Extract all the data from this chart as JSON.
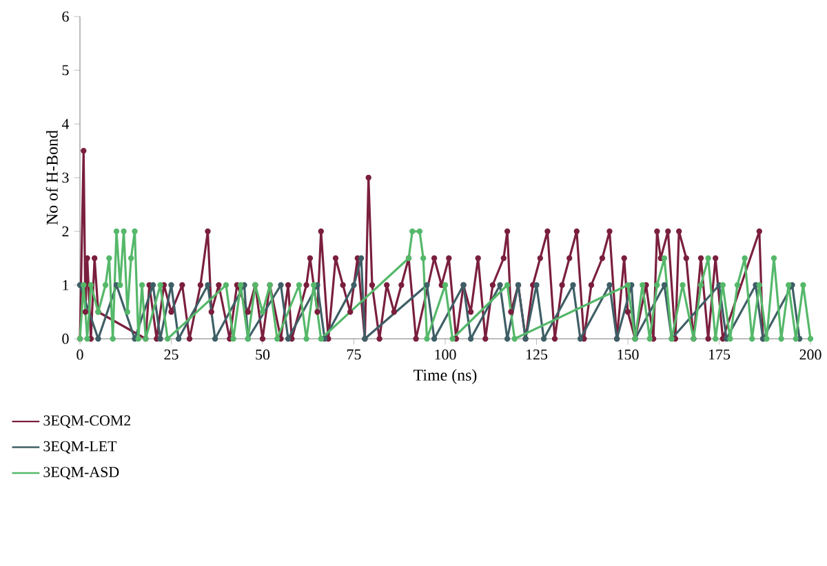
{
  "chart_data": {
    "type": "line",
    "xlabel": "Time (ns)",
    "ylabel": "No of H-Bond",
    "xlim": [
      0,
      200
    ],
    "ylim": [
      0,
      6
    ],
    "xticks": [
      0,
      25,
      50,
      75,
      100,
      125,
      150,
      175,
      200
    ],
    "yticks": [
      0,
      1,
      2,
      3,
      4,
      5,
      6
    ],
    "legend": "bottom left",
    "marker": "circle",
    "series": [
      {
        "name": "3EQM-COM2",
        "color": "#7a1f3d",
        "x": [
          0,
          1,
          1.5,
          2,
          3,
          4,
          5,
          18,
          19,
          21,
          23,
          25,
          28,
          30,
          33,
          35,
          36,
          38,
          41,
          43,
          46,
          48,
          50,
          52,
          55,
          57,
          58,
          62,
          63,
          65,
          66,
          68,
          70,
          72,
          74,
          76,
          78,
          79,
          80,
          82,
          84,
          86,
          88,
          90,
          92,
          97,
          99,
          101,
          103,
          105,
          107,
          109,
          111,
          113,
          116,
          117,
          118,
          120,
          122,
          124,
          126,
          128,
          130,
          132,
          134,
          136,
          138,
          140,
          143,
          145,
          147,
          149,
          150,
          152,
          155,
          157,
          158,
          159,
          161,
          163,
          164,
          166,
          168,
          170,
          172,
          174,
          176,
          186,
          187
        ],
        "values": [
          0,
          3.5,
          0.5,
          1.5,
          0,
          1.5,
          0.5,
          0,
          1,
          0,
          1,
          0.5,
          1,
          0,
          1,
          2,
          0.5,
          1,
          0,
          1,
          0.5,
          1,
          0,
          1,
          0,
          1,
          0,
          1,
          1.5,
          0.5,
          2,
          0,
          1.5,
          1,
          0.5,
          1.5,
          0,
          3,
          1,
          0,
          1,
          0.5,
          1,
          1.5,
          0,
          1.5,
          1,
          1.5,
          0,
          1,
          0.5,
          1.5,
          0,
          1,
          1.5,
          2,
          0.5,
          1,
          0,
          1,
          1.5,
          2,
          0,
          1,
          1.5,
          2,
          0,
          1,
          1.5,
          2,
          0,
          1.5,
          0.5,
          0,
          1,
          0,
          2,
          1.5,
          2,
          0,
          2,
          1.5,
          0,
          1.5,
          0,
          1.5,
          0,
          2,
          0
        ]
      },
      {
        "name": "3EQM-LET",
        "color": "#3e5f66",
        "x": [
          0,
          5,
          10,
          15,
          20,
          22,
          25,
          27,
          35,
          37,
          45,
          46,
          55,
          57,
          65,
          67,
          75,
          77,
          78,
          95,
          97,
          105,
          107,
          115,
          117,
          120,
          122,
          125,
          127,
          135,
          137,
          145,
          147,
          151,
          152,
          160,
          162,
          175,
          177,
          185,
          187,
          195,
          197
        ],
        "values": [
          1,
          0,
          1,
          0,
          1,
          0,
          1,
          0,
          1,
          0,
          1,
          0,
          1,
          0,
          1,
          0,
          1,
          1.5,
          0,
          1,
          0,
          1,
          0,
          1,
          0,
          1,
          0,
          1,
          0,
          1,
          0,
          1,
          0,
          1,
          0,
          1,
          0,
          1,
          0,
          1,
          0,
          1,
          0
        ]
      },
      {
        "name": "3EQM-ASD",
        "color": "#55b86a",
        "x": [
          0,
          1,
          2,
          3,
          5,
          7,
          8,
          9,
          10,
          11,
          12,
          13,
          14,
          15,
          16,
          17,
          18,
          22,
          24,
          40,
          42,
          44,
          46,
          48,
          50,
          52,
          54,
          60,
          62,
          64,
          66,
          90,
          91,
          93,
          94,
          95,
          100,
          102,
          117,
          119,
          150,
          152,
          154,
          156,
          158,
          160,
          162,
          165,
          168,
          170,
          172,
          174,
          176,
          178,
          180,
          182,
          184,
          186,
          188,
          190,
          192,
          194,
          196,
          198,
          200
        ],
        "values": [
          0,
          1,
          0,
          1,
          0.5,
          1,
          1.5,
          0,
          2,
          1,
          2,
          0.5,
          1.5,
          2,
          0,
          1,
          0,
          1,
          0,
          1,
          0,
          1,
          0,
          1,
          0.5,
          1,
          0,
          1,
          0,
          1,
          0,
          1.5,
          2,
          2,
          1.5,
          0,
          1,
          0,
          1,
          0,
          1,
          0,
          1,
          0,
          1,
          1.5,
          0,
          1,
          0,
          1,
          1.5,
          0,
          1,
          0,
          1,
          1.5,
          0,
          1,
          0,
          1.5,
          0,
          1,
          0,
          1,
          0
        ]
      }
    ]
  }
}
